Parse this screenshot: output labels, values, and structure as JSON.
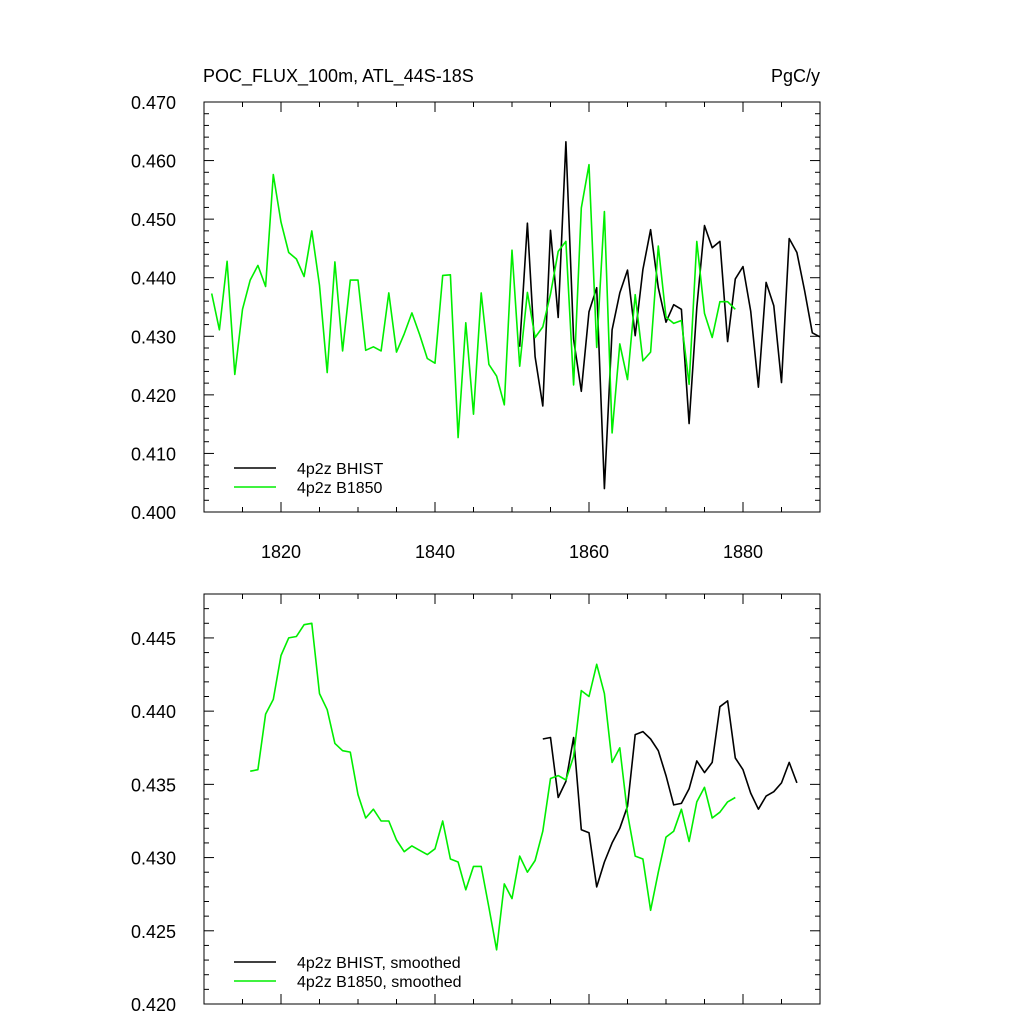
{
  "chart_data": [
    {
      "type": "line",
      "title": "POC_FLUX_100m, ATL_44S-18S",
      "units": "PgC/y",
      "xlim": [
        1810,
        1890
      ],
      "ylim": [
        0.4,
        0.47
      ],
      "xticks": [
        1820,
        1840,
        1860,
        1880
      ],
      "yticks": [
        0.4,
        0.41,
        0.42,
        0.43,
        0.44,
        0.45,
        0.46,
        0.47
      ],
      "ytick_labels": [
        "0.400",
        "0.410",
        "0.420",
        "0.430",
        "0.440",
        "0.450",
        "0.460",
        "0.470"
      ],
      "legend_position": "lower-left",
      "series": [
        {
          "name": "4p2z BHIST",
          "color": "#000000",
          "x0": 1851,
          "values": [
            0.4282,
            0.4493,
            0.4265,
            0.4181,
            0.4481,
            0.4332,
            0.4632,
            0.4295,
            0.4206,
            0.4342,
            0.4383,
            0.404,
            0.4311,
            0.4374,
            0.4413,
            0.4301,
            0.4414,
            0.4482,
            0.4383,
            0.4324,
            0.4354,
            0.4346,
            0.4151,
            0.4349,
            0.4489,
            0.4451,
            0.4462,
            0.4291,
            0.4398,
            0.4419,
            0.4343,
            0.4213,
            0.4392,
            0.4352,
            0.4221,
            0.4467,
            0.4443,
            0.4378,
            0.4306,
            0.4299
          ]
        },
        {
          "name": "4p2z B1850",
          "color": "#00ee00",
          "x0": 1811,
          "values": [
            0.4373,
            0.4311,
            0.4428,
            0.4235,
            0.4346,
            0.4396,
            0.4421,
            0.4385,
            0.4576,
            0.4495,
            0.4443,
            0.4432,
            0.4402,
            0.448,
            0.4387,
            0.4238,
            0.4427,
            0.4275,
            0.4396,
            0.4396,
            0.4276,
            0.4282,
            0.4275,
            0.4374,
            0.4273,
            0.4304,
            0.434,
            0.4303,
            0.4262,
            0.4254,
            0.4404,
            0.4405,
            0.4127,
            0.4323,
            0.4167,
            0.4374,
            0.4252,
            0.4232,
            0.4183,
            0.4447,
            0.4249,
            0.4375,
            0.4298,
            0.4316,
            0.4372,
            0.4445,
            0.4462,
            0.4217,
            0.4519,
            0.4593,
            0.4281,
            0.4513,
            0.4135,
            0.4287,
            0.4226,
            0.4371,
            0.4258,
            0.4273,
            0.4454,
            0.4333,
            0.4322,
            0.4327,
            0.4218,
            0.4462,
            0.4339,
            0.4298,
            0.4359,
            0.4359,
            0.4346
          ]
        }
      ]
    },
    {
      "type": "line",
      "title": "",
      "xlim": [
        1810,
        1890
      ],
      "ylim": [
        0.42,
        0.448
      ],
      "xticks": [
        1820,
        1840,
        1860,
        1880
      ],
      "yticks": [
        0.42,
        0.425,
        0.43,
        0.435,
        0.44,
        0.445
      ],
      "ytick_labels": [
        "0.420",
        "0.425",
        "0.430",
        "0.435",
        "0.440",
        "0.445"
      ],
      "legend_position": "lower-left",
      "series": [
        {
          "name": "4p2z BHIST, smoothed",
          "color": "#000000",
          "x0": 1854,
          "values": [
            0.4381,
            0.4382,
            0.4341,
            0.4352,
            0.4382,
            0.4319,
            0.4317,
            0.428,
            0.4297,
            0.431,
            0.432,
            0.4335,
            0.4384,
            0.4386,
            0.4381,
            0.4373,
            0.4356,
            0.4336,
            0.4337,
            0.4347,
            0.4366,
            0.4358,
            0.4365,
            0.4403,
            0.4407,
            0.4368,
            0.436,
            0.4344,
            0.4333,
            0.4342,
            0.4345,
            0.4351,
            0.4365,
            0.4351
          ]
        },
        {
          "name": "4p2z B1850, smoothed",
          "color": "#00ee00",
          "x0": 1816,
          "values": [
            0.4359,
            0.436,
            0.4398,
            0.4408,
            0.4438,
            0.445,
            0.4451,
            0.4459,
            0.446,
            0.4412,
            0.4401,
            0.4378,
            0.4373,
            0.4372,
            0.4343,
            0.4327,
            0.4333,
            0.4325,
            0.4325,
            0.4312,
            0.4304,
            0.4308,
            0.4305,
            0.4302,
            0.4306,
            0.4325,
            0.4299,
            0.4297,
            0.4278,
            0.4294,
            0.4294,
            0.4266,
            0.4237,
            0.4282,
            0.4272,
            0.4301,
            0.429,
            0.4298,
            0.4318,
            0.4354,
            0.4356,
            0.4353,
            0.4369,
            0.4414,
            0.441,
            0.4432,
            0.4412,
            0.4365,
            0.4375,
            0.433,
            0.4301,
            0.4299,
            0.4264,
            0.429,
            0.4314,
            0.4318,
            0.4333,
            0.4311,
            0.4338,
            0.4348,
            0.4327,
            0.4331,
            0.4338,
            0.4341
          ]
        }
      ]
    }
  ]
}
